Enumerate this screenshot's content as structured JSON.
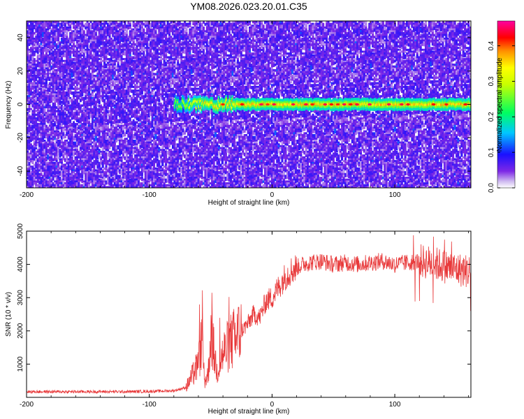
{
  "title": "YM08.2026.023.20.01.C35",
  "chart_data": [
    {
      "type": "heatmap",
      "xlabel": "Height of straight line (km)",
      "ylabel": "Frequency (Hz)",
      "xlim": [
        -200,
        162
      ],
      "ylim": [
        -50,
        50
      ],
      "xticks": [
        -200,
        -100,
        0,
        100
      ],
      "yticks": [
        -40,
        -20,
        0,
        20,
        40
      ],
      "colorbar": {
        "label": "Normalized spectral amplitude",
        "range": [
          0,
          0.47
        ],
        "ticks": [
          "0.0",
          "0.1",
          "0.2",
          "0.3",
          "0.4"
        ]
      },
      "signal_track": {
        "frequency_hz": 0,
        "start_x": -80,
        "end_x": 162,
        "peak_amplitude": 0.45
      },
      "background_amplitude": [
        0.0,
        0.08
      ]
    },
    {
      "type": "line",
      "xlabel": "Height of straight line (km)",
      "ylabel": "SNR (10 * v/v)",
      "xlim": [
        -200,
        162
      ],
      "ylim": [
        0,
        5000
      ],
      "xticks": [
        -200,
        -100,
        0,
        100
      ],
      "yticks": [
        1000,
        2000,
        3000,
        4000,
        5000
      ],
      "series": [
        {
          "color": "#e8393a",
          "x": [
            -200,
            -180,
            -160,
            -140,
            -120,
            -100,
            -80,
            -70,
            -65,
            -60,
            -57,
            -55,
            -52,
            -50,
            -45,
            -40,
            -35,
            -30,
            -25,
            -20,
            -15,
            -10,
            -5,
            0,
            5,
            10,
            15,
            20,
            25,
            30,
            40,
            50,
            60,
            70,
            80,
            90,
            100,
            110,
            120,
            130,
            140,
            150,
            160
          ],
          "values": [
            170,
            170,
            170,
            170,
            170,
            180,
            200,
            300,
            650,
            1000,
            1800,
            500,
            700,
            2000,
            800,
            1300,
            1600,
            1800,
            2000,
            2200,
            2500,
            2400,
            2900,
            3000,
            3300,
            3600,
            3800,
            3900,
            4000,
            4050,
            4100,
            4000,
            4050,
            4000,
            4050,
            4100,
            4000,
            4050,
            4100,
            4050,
            3950,
            3850,
            3800
          ]
        }
      ]
    }
  ]
}
